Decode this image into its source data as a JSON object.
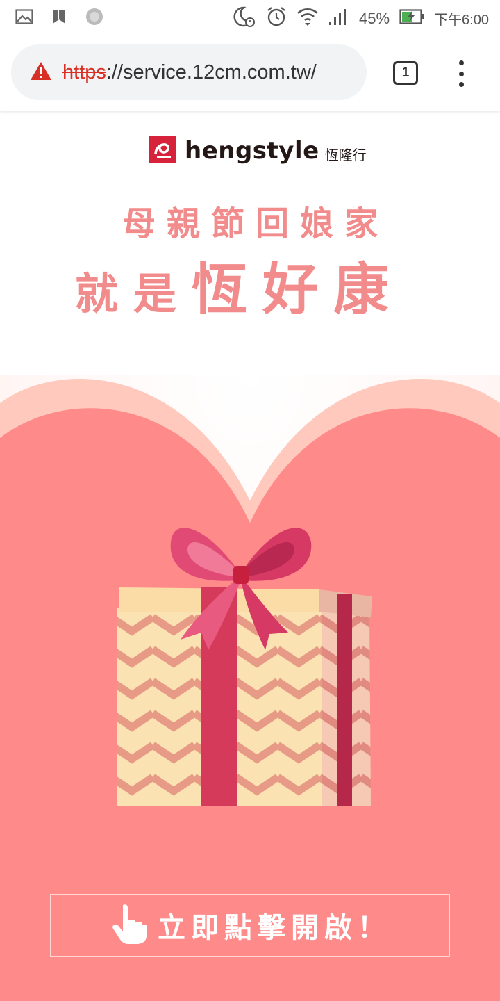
{
  "status_bar": {
    "battery_percent": "45%",
    "time": "下午6:00",
    "icons": [
      "gallery-icon",
      "bookmark-icon",
      "sync-icon",
      "moon-alarm-icon",
      "alarm-icon",
      "wifi-icon",
      "signal-icon",
      "battery-charging-icon"
    ]
  },
  "browser": {
    "url_scheme": "https",
    "url_rest": "://service.12cm.com.tw/",
    "tab_count": "1",
    "icons": [
      "warning-icon",
      "more-vert-icon"
    ]
  },
  "page": {
    "logo_text": "hengstyle",
    "logo_cn": "恆隆行",
    "headline_line1": "母親節回娘家",
    "headline_line2_small": "就是",
    "headline_line2_big": "恆好康",
    "cta_label": "立即點擊開啟！"
  },
  "colors": {
    "accent_pink": "#f28b8b",
    "heart_pink": "#ff8a8a",
    "heart_outer": "#ffc9bd",
    "url_scheme_red": "#d93025"
  }
}
